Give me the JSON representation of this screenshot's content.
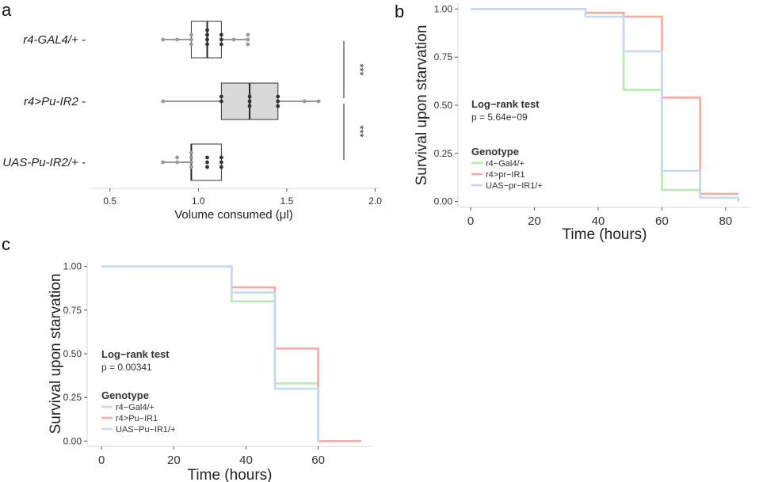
{
  "panels": {
    "a": "a",
    "b": "b",
    "c": "c"
  },
  "chart_data": [
    {
      "id": "a",
      "type": "box",
      "orientation": "horizontal",
      "xlabel": "Volume consumed (μl)",
      "xlim": [
        0.38,
        2.02
      ],
      "xticks": [
        0.5,
        1.0,
        1.5,
        2.0
      ],
      "xtick_labels": [
        "0.5",
        "1.0",
        "1.5",
        "2.0"
      ],
      "categories": [
        "r4-GAL4/+",
        "r4>Pu-IR2",
        "UAS-Pu-IR2/+"
      ],
      "boxes": [
        {
          "category": "r4-GAL4/+",
          "whisker_low": 0.8,
          "q1": 0.96,
          "median": 1.05,
          "q3": 1.13,
          "whisker_high": 1.28,
          "fill": "#ffffff"
        },
        {
          "category": "r4>Pu-IR2",
          "whisker_low": 0.8,
          "q1": 1.13,
          "median": 1.29,
          "q3": 1.45,
          "whisker_high": 1.68,
          "fill": "#d9d9d9"
        },
        {
          "category": "UAS-Pu-IR2/+",
          "whisker_low": 0.8,
          "q1": 0.96,
          "median": 0.96,
          "q3": 1.13,
          "whisker_high": 1.13,
          "fill": "#ffffff"
        }
      ],
      "points": [
        {
          "category": "r4-GAL4/+",
          "values": [
            0.8,
            0.88,
            0.96,
            0.96,
            0.96,
            1.05,
            1.05,
            1.05,
            1.05,
            1.13,
            1.13,
            1.13,
            1.2,
            1.28,
            1.28,
            1.28
          ]
        },
        {
          "category": "r4>Pu-IR2",
          "values": [
            0.8,
            1.13,
            1.13,
            1.29,
            1.29,
            1.29,
            1.45,
            1.45,
            1.45,
            1.6,
            1.68
          ]
        },
        {
          "category": "UAS-Pu-IR2/+",
          "values": [
            0.8,
            0.88,
            0.88,
            0.96,
            0.96,
            0.96,
            0.96,
            1.05,
            1.05,
            1.05,
            1.13,
            1.13,
            1.13
          ]
        }
      ],
      "significance": [
        {
          "label": "***",
          "from": "r4-GAL4/+",
          "to": "r4>Pu-IR2"
        },
        {
          "label": "***",
          "from": "r4>Pu-IR2",
          "to": "UAS-Pu-IR2/+"
        }
      ]
    },
    {
      "id": "b",
      "type": "line",
      "step": true,
      "ylabel": "Survival upon starvation",
      "xlabel": "Time (hours)",
      "xlim": [
        -4,
        88
      ],
      "ylim": [
        -0.03,
        1.03
      ],
      "xticks": [
        0,
        20,
        40,
        60,
        80
      ],
      "xtick_labels": [
        "0",
        "20",
        "40",
        "60",
        "80"
      ],
      "yticks": [
        0,
        0.25,
        0.5,
        0.75,
        1.0
      ],
      "ytick_labels": [
        "0.00",
        "0.25",
        "0.50",
        "0.75",
        "1.00"
      ],
      "stat_title": "Log−rank test",
      "stat_p": "p = 5.64e−09",
      "legend_title": "Genotype",
      "series": [
        {
          "name": "r4−Gal4/+",
          "color": "#b5ecb0",
          "x": [
            0,
            36,
            48,
            60,
            72,
            84
          ],
          "y": [
            1.0,
            0.98,
            0.58,
            0.06,
            0.04,
            0.04
          ]
        },
        {
          "name": "r4>pr−IR1",
          "color": "#f6aaa5",
          "x": [
            0,
            36,
            48,
            60,
            72,
            84
          ],
          "y": [
            1.0,
            0.98,
            0.96,
            0.54,
            0.04,
            0.04
          ]
        },
        {
          "name": "UAS−pr−IR1/+",
          "color": "#c9d8f1",
          "x": [
            0,
            36,
            48,
            60,
            72,
            84
          ],
          "y": [
            1.0,
            0.96,
            0.78,
            0.16,
            0.02,
            0.0
          ]
        }
      ]
    },
    {
      "id": "c",
      "type": "line",
      "step": true,
      "ylabel": "Survival upon starvation",
      "xlabel": "Time (hours)",
      "xlim": [
        -4,
        75
      ],
      "ylim": [
        -0.03,
        1.03
      ],
      "xticks": [
        0,
        20,
        40,
        60
      ],
      "xtick_labels": [
        "0",
        "20",
        "40",
        "60"
      ],
      "yticks": [
        0,
        0.25,
        0.5,
        0.75,
        1.0
      ],
      "ytick_labels": [
        "0.00",
        "0.25",
        "0.50",
        "0.75",
        "1.00"
      ],
      "stat_title": "Log−rank test",
      "stat_p": "p = 0.00341",
      "legend_title": "Genotype",
      "series": [
        {
          "name": "r4−Gal4/+",
          "color": "#b5ecb0",
          "x": [
            0,
            36,
            48,
            60
          ],
          "y": [
            1.0,
            0.8,
            0.33,
            0.0
          ]
        },
        {
          "name": "r4>Pu−IR1",
          "color": "#f6aaa5",
          "x": [
            0,
            36,
            48,
            60,
            72
          ],
          "y": [
            1.0,
            0.88,
            0.53,
            0.0,
            0.0
          ]
        },
        {
          "name": "UAS−Pu−IR1/+",
          "color": "#c9d8f1",
          "x": [
            0,
            36,
            48,
            60
          ],
          "y": [
            1.0,
            0.85,
            0.3,
            0.0
          ]
        }
      ]
    }
  ]
}
